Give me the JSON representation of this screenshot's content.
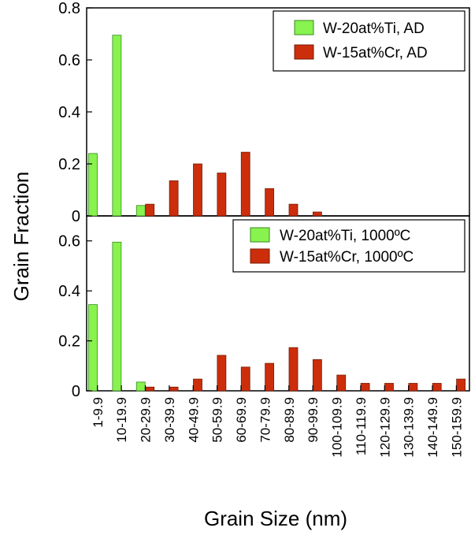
{
  "colors": {
    "ti": "#88f24e",
    "ti_stroke": "#3a8a20",
    "cr": "#cc2e0c",
    "cr_stroke": "#7a1a05"
  },
  "chart_data": {
    "type": "bar",
    "xlabel": "Grain Size (nm)",
    "ylabel": "Grain Fraction",
    "categories": [
      "1-9.9",
      "10-19.9",
      "20-29.9",
      "30-39.9",
      "40-49.9",
      "50-59.9",
      "60-69.9",
      "70-79.9",
      "80-89.9",
      "90-99.9",
      "100-109.9",
      "110-119.9",
      "120-129.9",
      "130-139.9",
      "140-149.9",
      "150-159.9"
    ],
    "panels": [
      {
        "ylim": [
          0,
          0.8
        ],
        "yticks": [
          0,
          0.2,
          0.4,
          0.6,
          0.8
        ],
        "ytick_labels": [
          "0",
          "0.2",
          "0.4",
          "0.6",
          "0.8"
        ],
        "legend_position": "top-right",
        "series": [
          {
            "name": "W-20at%Ti, AD",
            "values": [
              0.24,
              0.695,
              0.04,
              0,
              0,
              0,
              0,
              0,
              0,
              0,
              0,
              0,
              0,
              0,
              0,
              0
            ]
          },
          {
            "name": "W-15at%Cr, AD",
            "values": [
              0,
              0,
              0.045,
              0.135,
              0.2,
              0.165,
              0.245,
              0.105,
              0.045,
              0.015,
              0,
              0,
              0,
              0,
              0,
              0
            ]
          }
        ]
      },
      {
        "ylim": [
          0,
          0.7
        ],
        "yticks": [
          0,
          0.2,
          0.4,
          0.6
        ],
        "ytick_labels": [
          "0",
          "0.2",
          "0.4",
          "0.6"
        ],
        "legend_position": "top-right",
        "series": [
          {
            "name": "W-20at%Ti, 1000ºC",
            "values": [
              0.345,
              0.595,
              0.035,
              0,
              0,
              0,
              0,
              0,
              0,
              0,
              0,
              0,
              0,
              0,
              0,
              0
            ]
          },
          {
            "name": "W-15at%Cr, 1000ºC",
            "values": [
              0,
              0,
              0.015,
              0.015,
              0.047,
              0.142,
              0.095,
              0.11,
              0.173,
              0.125,
              0.063,
              0.03,
              0.03,
              0.03,
              0.03,
              0.047
            ]
          }
        ]
      }
    ]
  }
}
